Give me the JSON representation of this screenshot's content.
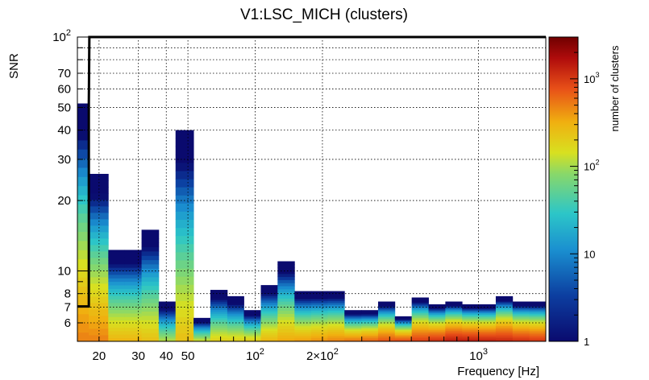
{
  "chart_data": {
    "type": "heatmap",
    "title": "V1:LSC_MICH (clusters)",
    "xlabel": "Frequency [Hz]",
    "ylabel": "SNR",
    "zlabel": "number of clusters",
    "xscale": "log",
    "yscale": "log",
    "zscale": "log",
    "xlim": [
      16,
      2000
    ],
    "ylim": [
      5,
      100
    ],
    "zlim": [
      1,
      3000
    ],
    "grid": true,
    "x_ticks": [
      {
        "value": 20,
        "label": "20"
      },
      {
        "value": 30,
        "label": "30"
      },
      {
        "value": 40,
        "label": "40"
      },
      {
        "value": 50,
        "label": "50"
      },
      {
        "value": 100,
        "label": "10",
        "exp": "2"
      },
      {
        "value": 200,
        "label": "2×10",
        "exp": "2"
      },
      {
        "value": 1000,
        "label": "10",
        "exp": "3"
      }
    ],
    "y_ticks": [
      {
        "value": 6,
        "label": "6"
      },
      {
        "value": 7,
        "label": "7"
      },
      {
        "value": 8,
        "label": "8"
      },
      {
        "value": 10,
        "label": "10"
      },
      {
        "value": 20,
        "label": "20"
      },
      {
        "value": 30,
        "label": "30"
      },
      {
        "value": 40,
        "label": "40"
      },
      {
        "value": 50,
        "label": "50"
      },
      {
        "value": 60,
        "label": "60"
      },
      {
        "value": 70,
        "label": "70"
      },
      {
        "value": 100,
        "label": "10",
        "exp": "2"
      }
    ],
    "z_ticks": [
      {
        "value": 1,
        "label": "1"
      },
      {
        "value": 10,
        "label": "10"
      },
      {
        "value": 100,
        "label": "10",
        "exp": "2"
      },
      {
        "value": 1000,
        "label": "10",
        "exp": "3"
      }
    ],
    "frequency_bins": [
      {
        "f0": 16,
        "f1": 18,
        "snr_max": 52,
        "clusters_at_floor": 500
      },
      {
        "f0": 18,
        "f1": 22,
        "snr_max": 26,
        "clusters_at_floor": 500
      },
      {
        "f0": 22,
        "f1": 26,
        "snr_max": 12.3,
        "clusters_at_floor": 300
      },
      {
        "f0": 26,
        "f1": 31,
        "snr_max": 12.3,
        "clusters_at_floor": 300
      },
      {
        "f0": 31,
        "f1": 37,
        "snr_max": 15,
        "clusters_at_floor": 250
      },
      {
        "f0": 37,
        "f1": 44,
        "snr_max": 7.4,
        "clusters_at_floor": 120
      },
      {
        "f0": 44,
        "f1": 53,
        "snr_max": 40,
        "clusters_at_floor": 250
      },
      {
        "f0": 53,
        "f1": 63,
        "snr_max": 6.3,
        "clusters_at_floor": 150
      },
      {
        "f0": 63,
        "f1": 75,
        "snr_max": 8.3,
        "clusters_at_floor": 200
      },
      {
        "f0": 75,
        "f1": 89,
        "snr_max": 7.8,
        "clusters_at_floor": 200
      },
      {
        "f0": 89,
        "f1": 106,
        "snr_max": 6.8,
        "clusters_at_floor": 220
      },
      {
        "f0": 106,
        "f1": 126,
        "snr_max": 8.7,
        "clusters_at_floor": 300
      },
      {
        "f0": 126,
        "f1": 150,
        "snr_max": 11,
        "clusters_at_floor": 350
      },
      {
        "f0": 150,
        "f1": 178,
        "snr_max": 8.2,
        "clusters_at_floor": 400
      },
      {
        "f0": 178,
        "f1": 211,
        "snr_max": 8.2,
        "clusters_at_floor": 450
      },
      {
        "f0": 211,
        "f1": 251,
        "snr_max": 8.2,
        "clusters_at_floor": 500
      },
      {
        "f0": 251,
        "f1": 299,
        "snr_max": 6.8,
        "clusters_at_floor": 600
      },
      {
        "f0": 299,
        "f1": 355,
        "snr_max": 6.8,
        "clusters_at_floor": 700
      },
      {
        "f0": 355,
        "f1": 422,
        "snr_max": 7.4,
        "clusters_at_floor": 800
      },
      {
        "f0": 422,
        "f1": 502,
        "snr_max": 6.4,
        "clusters_at_floor": 900
      },
      {
        "f0": 502,
        "f1": 597,
        "snr_max": 7.7,
        "clusters_at_floor": 1000
      },
      {
        "f0": 597,
        "f1": 710,
        "snr_max": 7.2,
        "clusters_at_floor": 1200
      },
      {
        "f0": 710,
        "f1": 844,
        "snr_max": 7.4,
        "clusters_at_floor": 1500
      },
      {
        "f0": 844,
        "f1": 1004,
        "snr_max": 7.2,
        "clusters_at_floor": 1500
      },
      {
        "f0": 1004,
        "f1": 1194,
        "snr_max": 7.2,
        "clusters_at_floor": 1400
      },
      {
        "f0": 1194,
        "f1": 1420,
        "snr_max": 7.8,
        "clusters_at_floor": 1300
      },
      {
        "f0": 1420,
        "f1": 1689,
        "snr_max": 7.4,
        "clusters_at_floor": 1200
      },
      {
        "f0": 1689,
        "f1": 2000,
        "snr_max": 7.4,
        "clusters_at_floor": 1100
      }
    ],
    "threshold_outline": [
      [
        16,
        7.05
      ],
      [
        18,
        7.05
      ],
      [
        18,
        52
      ],
      [
        18.1,
        100
      ],
      [
        2000,
        100
      ]
    ]
  }
}
